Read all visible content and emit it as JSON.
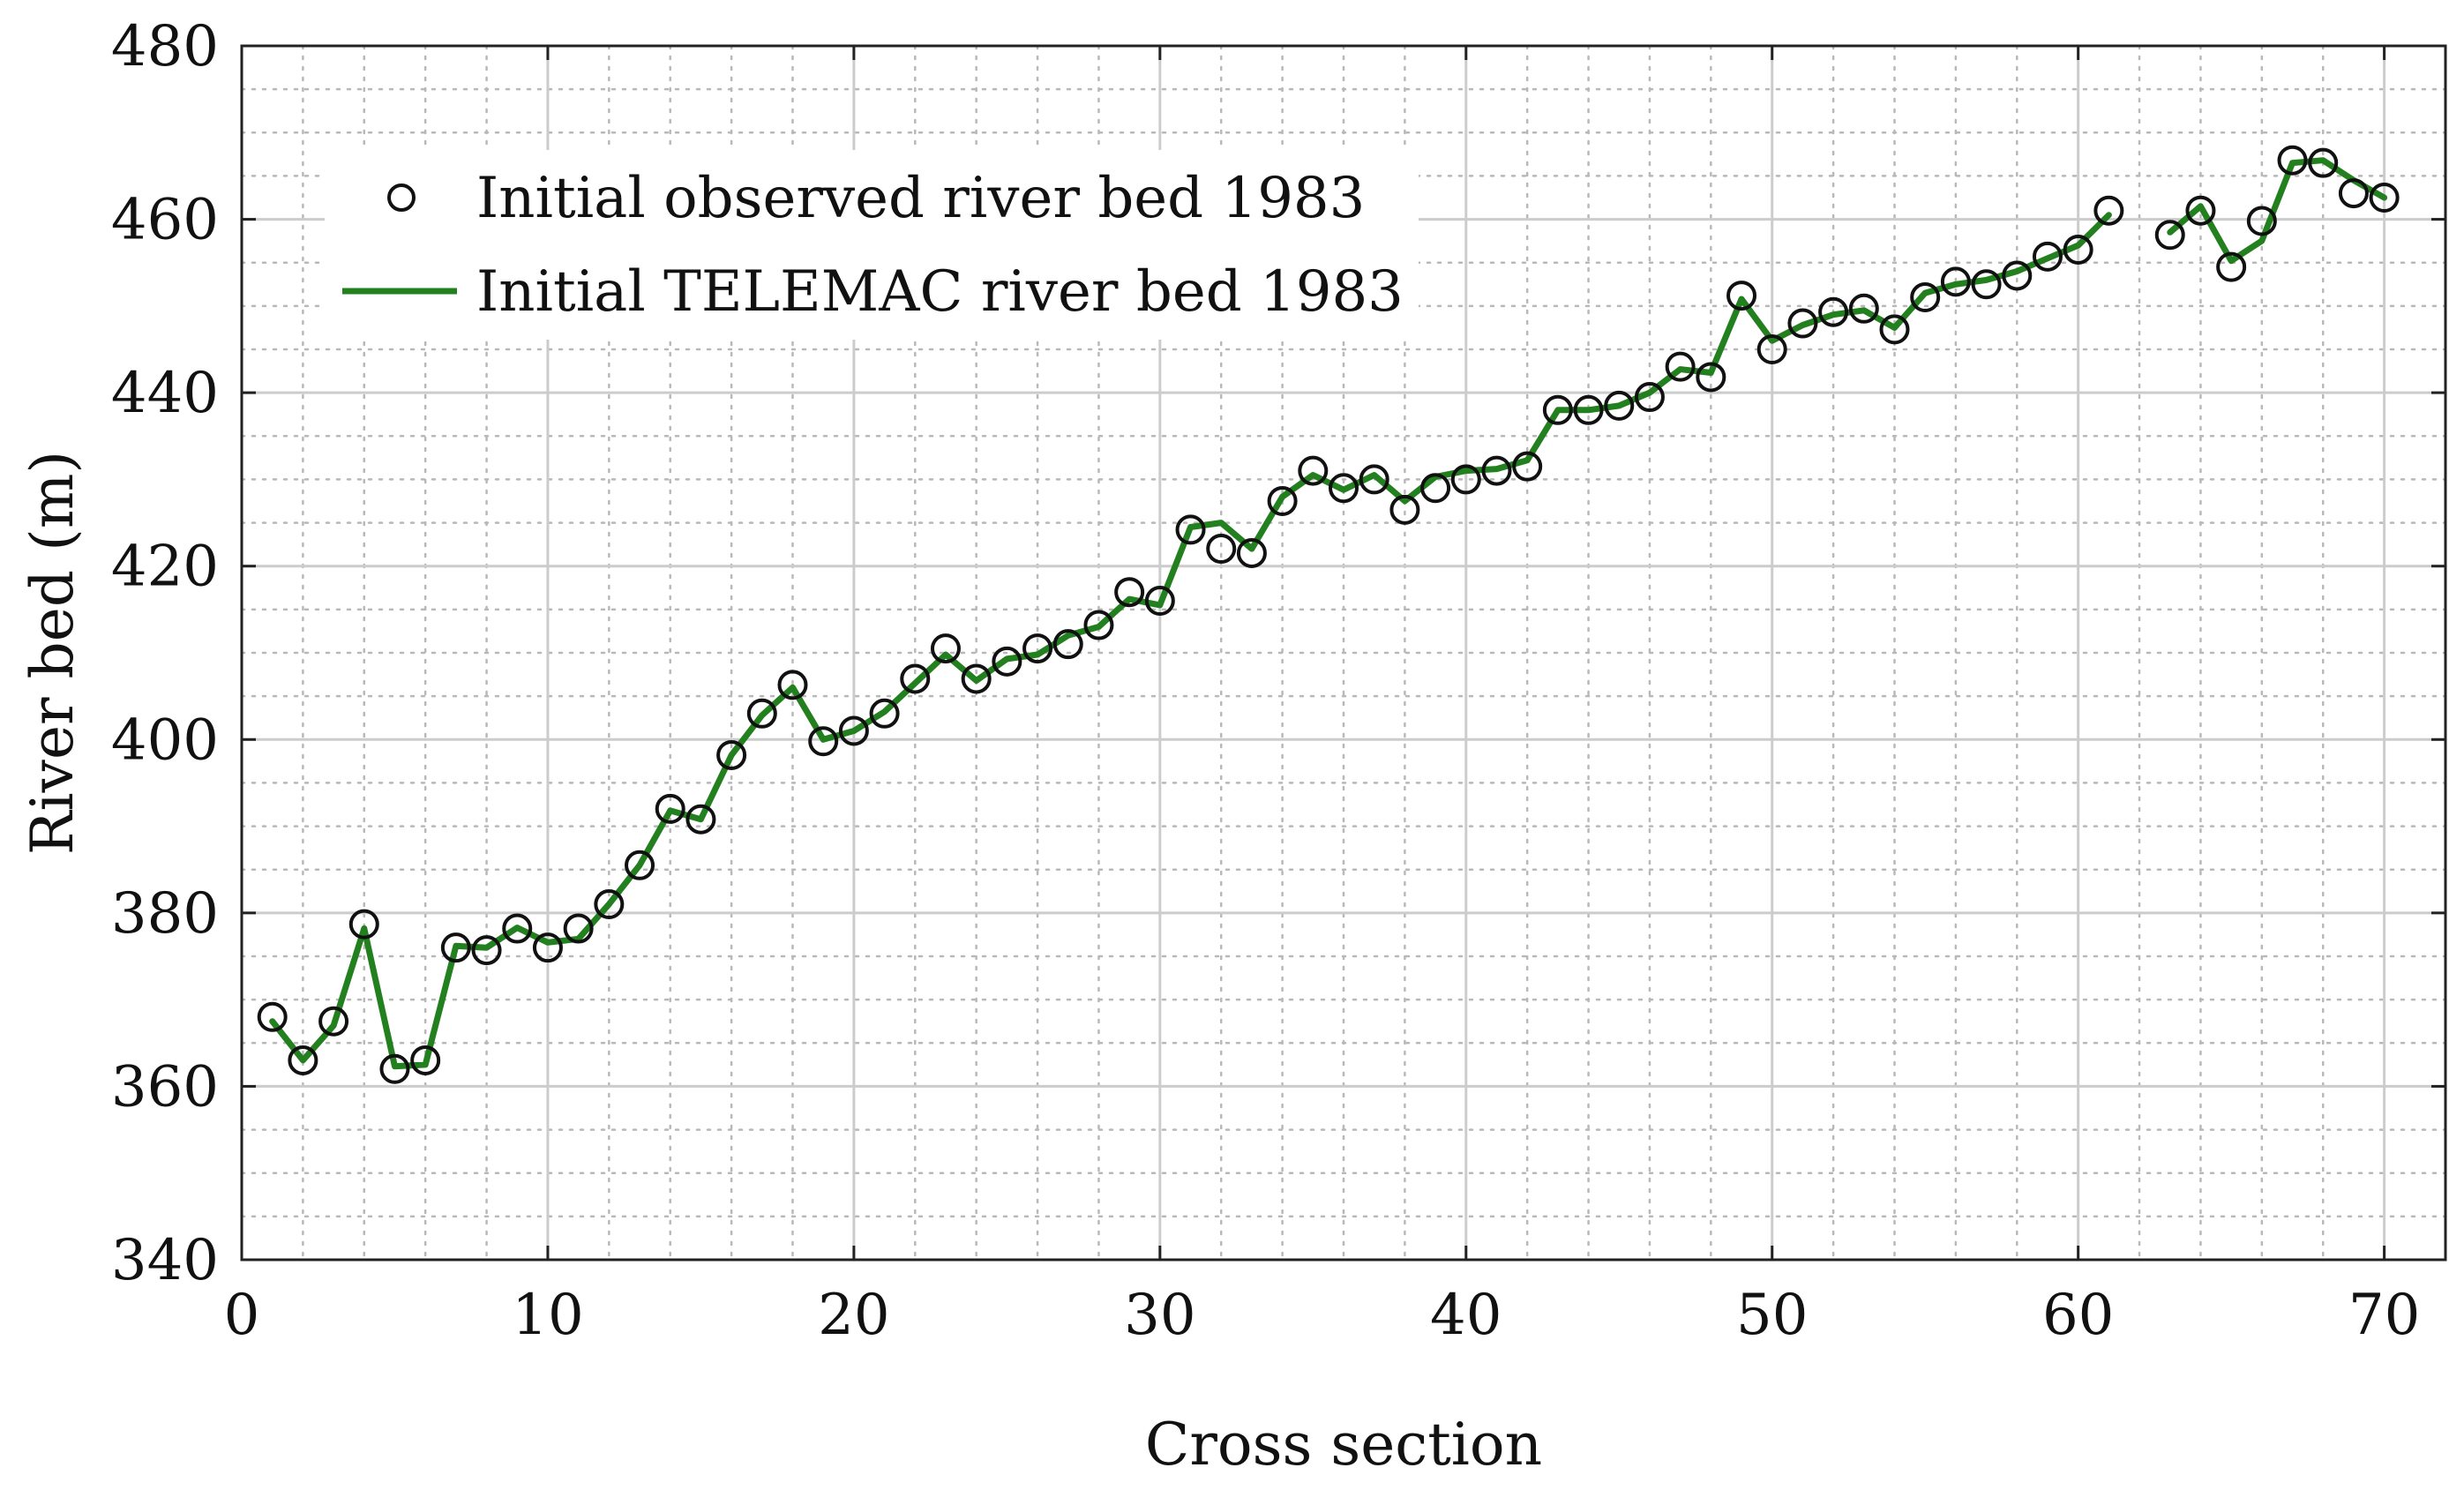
{
  "chart_data": {
    "type": "line",
    "xlabel": "Cross section",
    "ylabel": "River bed (m)",
    "xlim": [
      0,
      72
    ],
    "ylim": [
      340,
      480
    ],
    "x_ticks": [
      0,
      10,
      20,
      30,
      40,
      50,
      60,
      70
    ],
    "y_ticks": [
      340,
      360,
      380,
      400,
      420,
      440,
      460,
      480
    ],
    "x_tick_labels": [
      "0",
      "10",
      "20",
      "30",
      "40",
      "50",
      "60",
      "70"
    ],
    "y_tick_labels": [
      "340",
      "360",
      "380",
      "400",
      "420",
      "440",
      "460",
      "480"
    ],
    "x_minor_step": 2,
    "y_minor_step": 5,
    "grid": true,
    "legend_position": "top-left",
    "colors": {
      "observed": "#111111",
      "telemac": "#23801f",
      "grid_major": "#cccccc",
      "grid_minor": "#b8b8b8",
      "axes": "#222222"
    },
    "series": [
      {
        "name": "Initial observed river bed 1983",
        "type": "scatter",
        "marker": "circle-open",
        "x": [
          1,
          2,
          3,
          4,
          5,
          6,
          7,
          8,
          9,
          10,
          11,
          12,
          13,
          14,
          15,
          16,
          17,
          18,
          19,
          20,
          21,
          22,
          23,
          24,
          25,
          26,
          27,
          28,
          29,
          30,
          31,
          32,
          33,
          34,
          35,
          36,
          37,
          38,
          39,
          40,
          41,
          42,
          43,
          44,
          45,
          46,
          47,
          48,
          49,
          50,
          51,
          52,
          53,
          54,
          55,
          56,
          57,
          58,
          59,
          60,
          61,
          63,
          64,
          65,
          66,
          67,
          68,
          69,
          70
        ],
        "values": [
          368,
          363,
          367.5,
          378.7,
          362,
          363,
          376,
          375.7,
          378.2,
          376,
          378.2,
          381,
          385.5,
          392,
          390.8,
          398.2,
          403,
          406.3,
          399.8,
          401,
          403,
          407,
          410.5,
          407,
          409,
          410.5,
          411,
          413.2,
          417,
          416,
          424.2,
          422,
          421.5,
          427.5,
          431,
          429,
          430,
          426.5,
          429,
          430,
          431,
          431.5,
          438,
          438,
          438.5,
          439.5,
          443,
          441.8,
          451.2,
          445,
          448,
          449.3,
          449.7,
          447.3,
          451,
          452.8,
          452.5,
          453.5,
          455.7,
          456.5,
          461,
          458.2,
          461,
          454.5,
          459.8,
          466.8,
          466.5,
          463,
          462.5
        ]
      },
      {
        "name": "Initial TELEMAC river bed 1983",
        "type": "line",
        "x": [
          1,
          2,
          3,
          4,
          5,
          6,
          7,
          8,
          9,
          10,
          11,
          12,
          13,
          14,
          15,
          16,
          17,
          18,
          19,
          20,
          21,
          22,
          23,
          24,
          25,
          26,
          27,
          28,
          29,
          30,
          31,
          32,
          33,
          34,
          35,
          36,
          37,
          38,
          39,
          40,
          41,
          42,
          43,
          44,
          45,
          46,
          47,
          48,
          49,
          50,
          51,
          52,
          53,
          54,
          55,
          56,
          57,
          58,
          59,
          60,
          61,
          null,
          63,
          64,
          65,
          66,
          67,
          68,
          69,
          70
        ],
        "values": [
          367.5,
          363,
          367,
          378.2,
          362.3,
          362.5,
          376.2,
          376,
          378.3,
          376.6,
          377,
          381,
          385.5,
          391.8,
          390.8,
          398.2,
          402.8,
          406,
          400,
          401,
          403.2,
          406.5,
          409.8,
          406.8,
          409.3,
          409.8,
          412,
          413,
          416.2,
          415.5,
          424.5,
          425,
          422,
          428,
          430.5,
          428.8,
          430.5,
          427.5,
          430.3,
          431,
          431.2,
          432.2,
          438,
          438,
          438.5,
          440,
          442.7,
          442.3,
          450.8,
          446,
          447.8,
          449,
          449.5,
          447.5,
          451.5,
          452.5,
          453,
          454,
          455.5,
          457,
          460.5,
          null,
          458.5,
          461.5,
          455.2,
          457.5,
          466.5,
          466.8,
          464.5,
          462.5
        ]
      }
    ]
  }
}
